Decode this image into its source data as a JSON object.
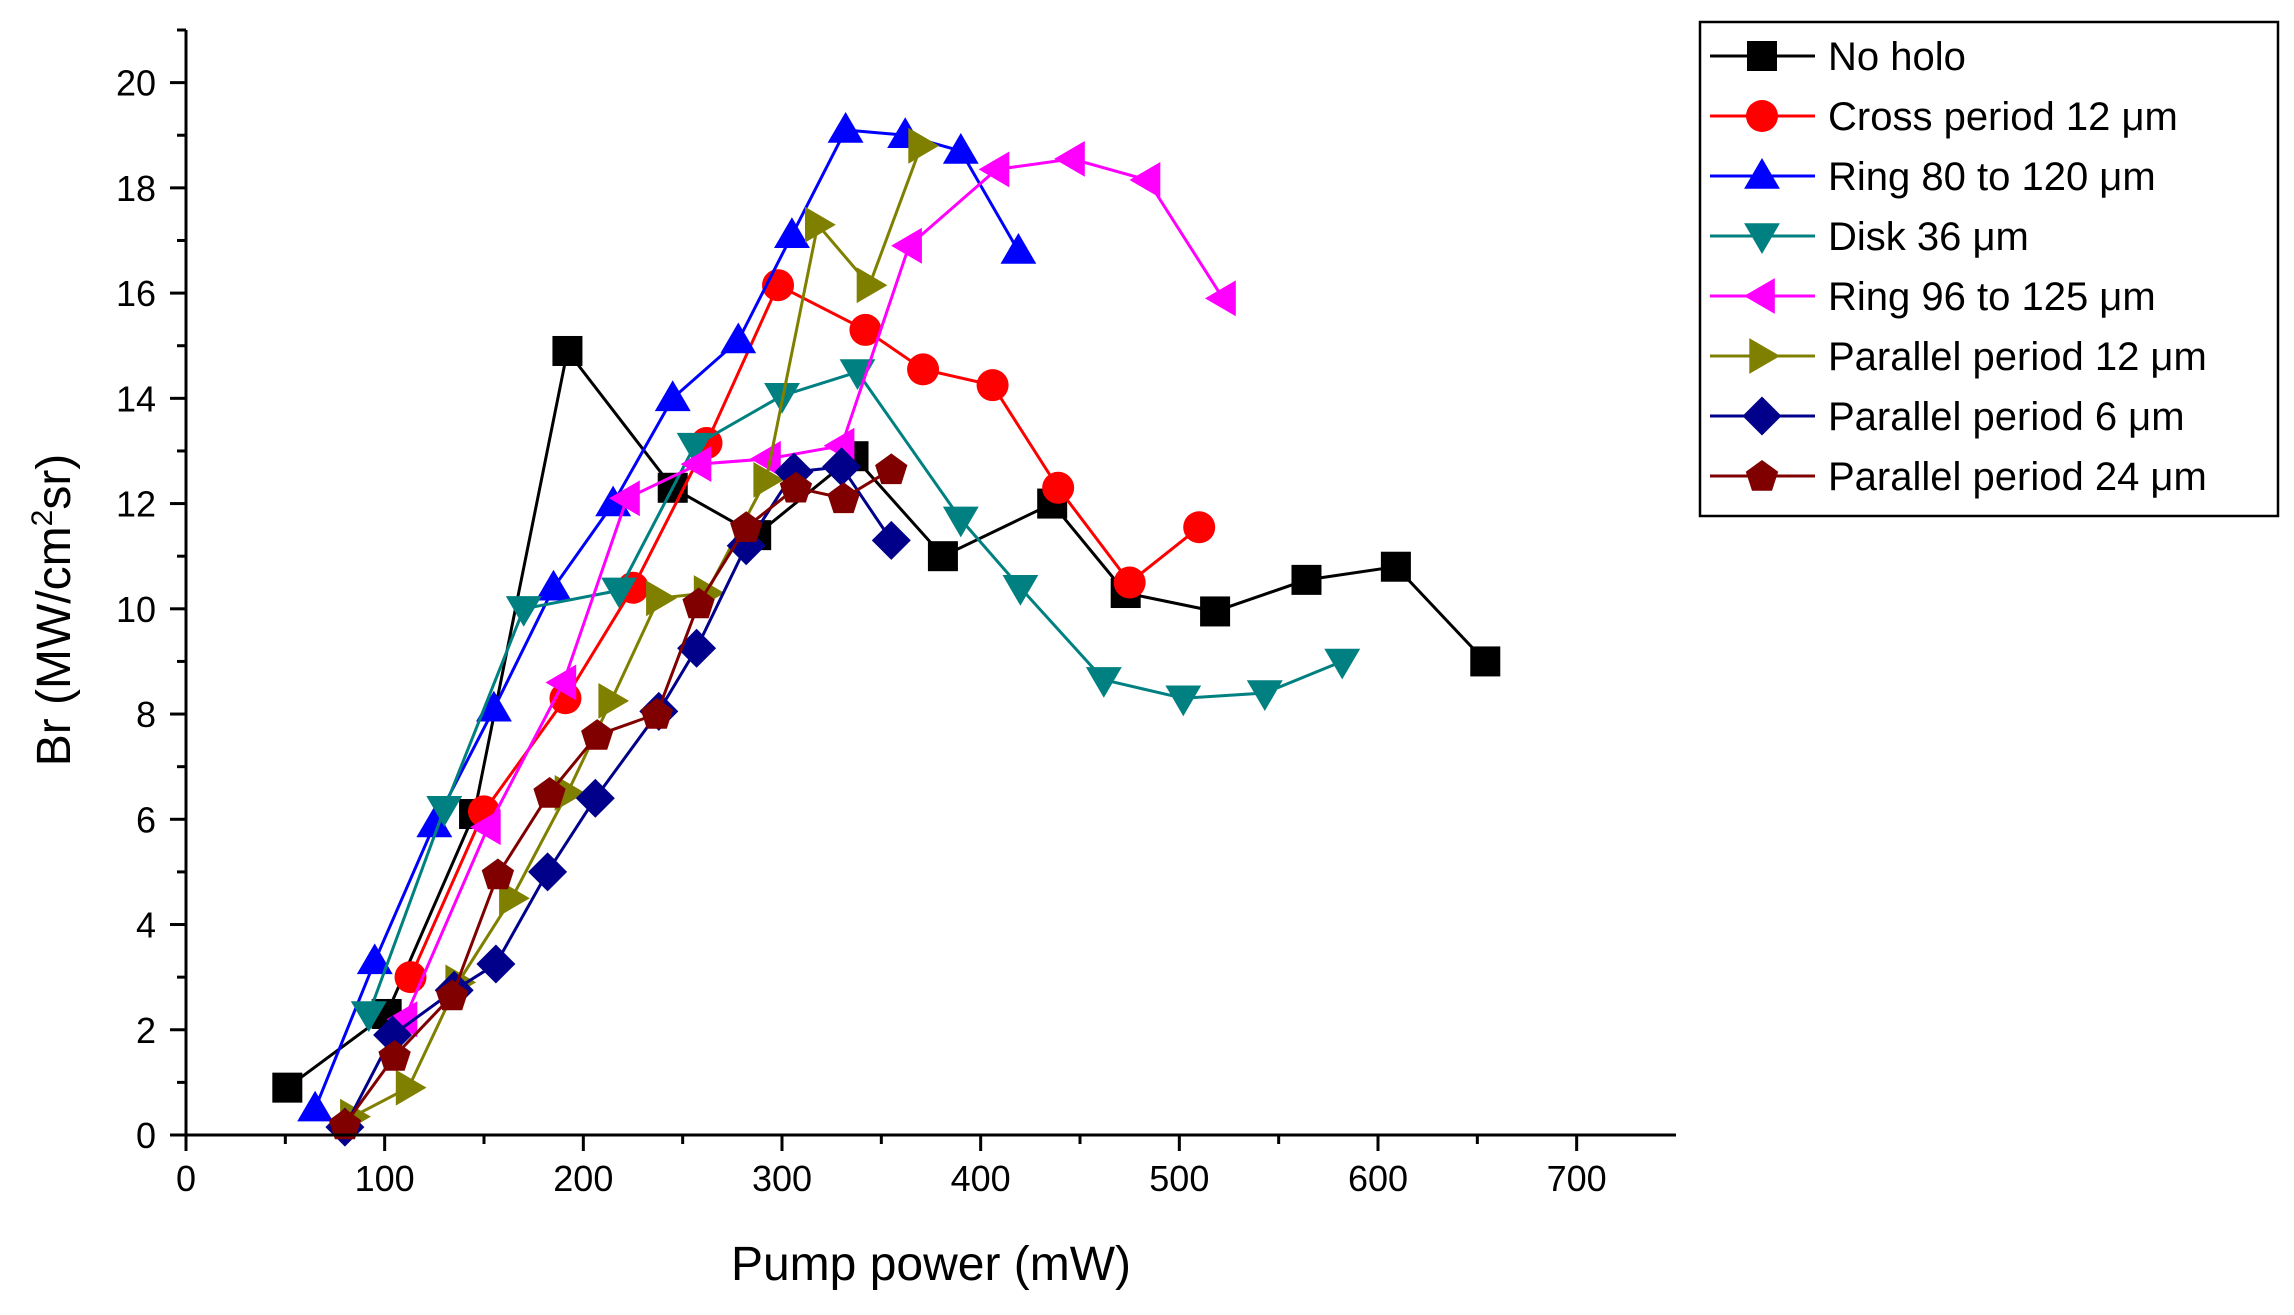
{
  "chart_data": {
    "type": "line",
    "xlabel": "Pump power (mW)",
    "ylabel": "Br (MW/cm²sr)",
    "ylabel_parts": {
      "pre": "Br (MW/cm",
      "sup": "2",
      "post": "sr)"
    },
    "xlim": [
      0,
      750
    ],
    "ylim": [
      0,
      21
    ],
    "xticks": [
      "0",
      "100",
      "200",
      "300",
      "400",
      "500",
      "600",
      "700"
    ],
    "yticks": [
      "0",
      "2",
      "4",
      "6",
      "8",
      "10",
      "12",
      "14",
      "16",
      "18",
      "20"
    ],
    "legend_position": "outside-top-right",
    "series": [
      {
        "name": "No holo",
        "color": "#000000",
        "marker": "square",
        "x": [
          51,
          101,
          145,
          192,
          245,
          287,
          336,
          381,
          436,
          473,
          518,
          564,
          609,
          654
        ],
        "y": [
          0.9,
          2.3,
          6.1,
          14.9,
          12.3,
          11.4,
          12.9,
          11.0,
          12.0,
          10.3,
          9.95,
          10.55,
          10.8,
          9.0
        ]
      },
      {
        "name": "Cross period 12 μm",
        "color": "#ff0000",
        "marker": "circle",
        "x": [
          113,
          150,
          191,
          225,
          262,
          298,
          342,
          371,
          406,
          439,
          475,
          510
        ],
        "y": [
          3.0,
          6.15,
          8.3,
          10.4,
          13.15,
          16.15,
          15.3,
          14.55,
          14.25,
          12.3,
          10.5,
          11.55
        ]
      },
      {
        "name": "Ring 80 to 120 μm",
        "color": "#0000ff",
        "marker": "triangle-up",
        "x": [
          65,
          95,
          125,
          155,
          185,
          215,
          245,
          278,
          305,
          332,
          362,
          390,
          419
        ],
        "y": [
          0.5,
          3.3,
          5.9,
          8.1,
          10.4,
          12.0,
          14.0,
          15.1,
          17.1,
          19.1,
          19.0,
          18.7,
          16.8
        ]
      },
      {
        "name": "Disk 36 μm",
        "color": "#008080",
        "marker": "triangle-down",
        "x": [
          92,
          130,
          170,
          218,
          256,
          300,
          338,
          390,
          420,
          462,
          502,
          543,
          582
        ],
        "y": [
          2.3,
          6.2,
          10.0,
          10.35,
          13.1,
          14.05,
          14.5,
          11.7,
          10.4,
          8.65,
          8.3,
          8.4,
          9.0
        ]
      },
      {
        "name": "Ring 96 to 125 μm",
        "color": "#ff00ff",
        "marker": "triangle-left",
        "x": [
          110,
          152,
          190,
          222,
          258,
          293,
          330,
          364,
          408,
          446,
          484,
          522
        ],
        "y": [
          2.2,
          5.85,
          8.6,
          12.1,
          12.75,
          12.85,
          13.1,
          16.9,
          18.35,
          18.55,
          18.15,
          15.9
        ]
      },
      {
        "name": "Parallel period 12 μm",
        "color": "#808000",
        "marker": "triangle-right",
        "x": [
          84,
          112,
          137,
          164,
          192,
          214,
          238,
          262,
          292,
          318,
          344,
          370
        ],
        "y": [
          0.35,
          0.9,
          2.9,
          4.5,
          6.5,
          8.25,
          10.2,
          10.3,
          12.45,
          17.3,
          16.15,
          18.8
        ]
      },
      {
        "name": "Parallel period 6 μm",
        "color": "#00008b",
        "marker": "diamond",
        "x": [
          80,
          104,
          135,
          156,
          182,
          206,
          238,
          257,
          282,
          306,
          330,
          355
        ],
        "y": [
          0.15,
          1.9,
          2.75,
          3.25,
          5.0,
          6.4,
          8.05,
          9.25,
          11.2,
          12.6,
          12.7,
          11.3
        ]
      },
      {
        "name": "Parallel period 24 μm",
        "color": "#800000",
        "marker": "pentagon",
        "x": [
          80,
          105,
          134,
          157,
          183,
          207,
          237,
          258,
          282,
          307,
          331,
          355
        ],
        "y": [
          0.2,
          1.5,
          2.65,
          4.95,
          6.5,
          7.6,
          8.0,
          10.1,
          11.55,
          12.3,
          12.1,
          12.65
        ]
      }
    ]
  }
}
